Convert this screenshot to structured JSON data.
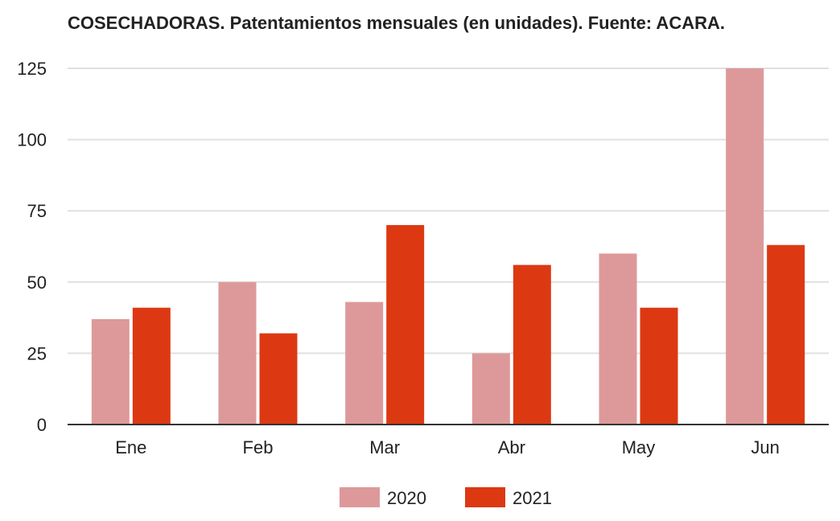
{
  "chart_data": {
    "type": "bar",
    "title": "COSECHADORAS. Patentamientos mensuales (en unidades). Fuente: ACARA.",
    "xlabel": "",
    "ylabel": "",
    "categories": [
      "Ene",
      "Feb",
      "Mar",
      "Abr",
      "May",
      "Jun"
    ],
    "series": [
      {
        "name": "2020",
        "color": "#dd9999",
        "values": [
          37,
          50,
          43,
          25,
          60,
          125
        ]
      },
      {
        "name": "2021",
        "color": "#dc3912",
        "values": [
          41,
          32,
          70,
          56,
          41,
          63
        ]
      }
    ],
    "ylim": [
      0,
      125
    ],
    "yticks": [
      0,
      25,
      50,
      75,
      100,
      125
    ],
    "grid": true,
    "legend_position": "bottom"
  }
}
